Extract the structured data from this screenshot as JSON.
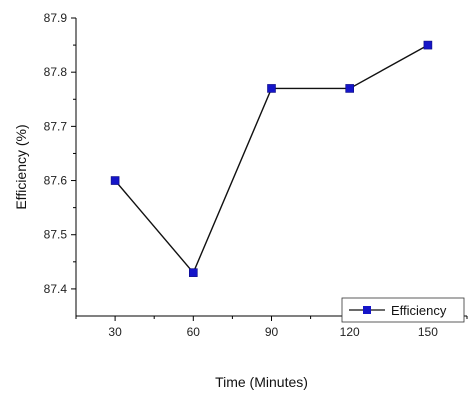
{
  "chart_data": {
    "type": "line",
    "x": [
      30,
      60,
      90,
      120,
      150
    ],
    "series": [
      {
        "name": "Efficiency",
        "values": [
          87.6,
          87.43,
          87.77,
          87.77,
          87.85
        ]
      }
    ],
    "xlabel": "Time (Minutes)",
    "ylabel": "Efficiency (%)",
    "xlim": [
      15,
      165
    ],
    "ylim": [
      87.35,
      87.9
    ],
    "x_ticks": [
      "30",
      "60",
      "90",
      "120",
      "150"
    ],
    "y_ticks": [
      "87.4",
      "87.5",
      "87.6",
      "87.7",
      "87.8",
      "87.9"
    ],
    "grid": false,
    "legend_position": "bottom-right",
    "colors": {
      "line": "#111111",
      "marker": "#1515c8"
    }
  }
}
